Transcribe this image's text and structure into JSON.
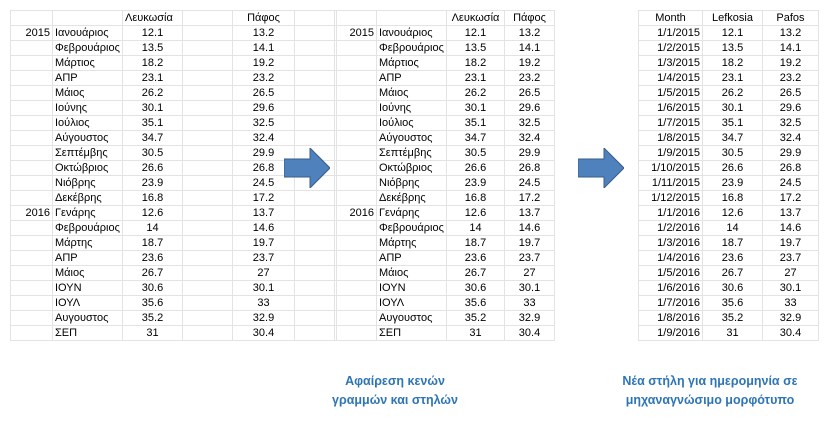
{
  "table1": {
    "headers": [
      "",
      "",
      "Λευκωσία",
      "",
      "Πάφος",
      ""
    ],
    "rows": [
      [
        "2015",
        "Ιανουάριος",
        "12.1",
        "",
        "13.2",
        ""
      ],
      [
        "",
        "Φεβρουάριος",
        "13.5",
        "",
        "14.1",
        ""
      ],
      [
        "",
        "Μάρτιος",
        "18.2",
        "",
        "19.2",
        ""
      ],
      [
        "",
        "ΑΠΡ",
        "23.1",
        "",
        "23.2",
        ""
      ],
      [
        "",
        "Μάιος",
        "26.2",
        "",
        "26.5",
        ""
      ],
      [
        "",
        "Ιούνης",
        "30.1",
        "",
        "29.6",
        ""
      ],
      [
        "",
        "Ιούλιος",
        "35.1",
        "",
        "32.5",
        ""
      ],
      [
        "",
        "Αύγουστος",
        "34.7",
        "",
        "32.4",
        ""
      ],
      [
        "",
        "Σεπτέμβης",
        "30.5",
        "",
        "29.9",
        ""
      ],
      [
        "",
        "Οκτώβριος",
        "26.6",
        "",
        "26.8",
        ""
      ],
      [
        "",
        "Νιόβρης",
        "23.9",
        "",
        "24.5",
        ""
      ],
      [
        "",
        "Δεκέβρης",
        "16.8",
        "",
        "17.2",
        ""
      ],
      [
        "2016",
        "Γενάρης",
        "12.6",
        "",
        "13.7",
        ""
      ],
      [
        "",
        "Φεβρουάριος",
        "14",
        "",
        "14.6",
        ""
      ],
      [
        "",
        "Μάρτης",
        "18.7",
        "",
        "19.7",
        ""
      ],
      [
        "",
        "ΑΠΡ",
        "23.6",
        "",
        "23.7",
        ""
      ],
      [
        "",
        "Μάιος",
        "26.7",
        "",
        "27",
        ""
      ],
      [
        "",
        "ΙΟΥΝ",
        "30.6",
        "",
        "30.1",
        ""
      ],
      [
        "",
        "ΙΟΥΛ",
        "35.6",
        "",
        "33",
        ""
      ],
      [
        "",
        "Αυγουστος",
        "35.2",
        "",
        "32.9",
        ""
      ],
      [
        "",
        "ΣΕΠ",
        "31",
        "",
        "30.4",
        ""
      ]
    ]
  },
  "table2": {
    "headers": [
      "",
      "",
      "Λευκωσία",
      "Πάφος"
    ],
    "rows": [
      [
        "2015",
        "Ιανουάριος",
        "12.1",
        "13.2"
      ],
      [
        "",
        "Φεβρουάριος",
        "13.5",
        "14.1"
      ],
      [
        "",
        "Μάρτιος",
        "18.2",
        "19.2"
      ],
      [
        "",
        "ΑΠΡ",
        "23.1",
        "23.2"
      ],
      [
        "",
        "Μάιος",
        "26.2",
        "26.5"
      ],
      [
        "",
        "Ιούνης",
        "30.1",
        "29.6"
      ],
      [
        "",
        "Ιούλιος",
        "35.1",
        "32.5"
      ],
      [
        "",
        "Αύγουστος",
        "34.7",
        "32.4"
      ],
      [
        "",
        "Σεπτέμβης",
        "30.5",
        "29.9"
      ],
      [
        "",
        "Οκτώβριος",
        "26.6",
        "26.8"
      ],
      [
        "",
        "Νιόβρης",
        "23.9",
        "24.5"
      ],
      [
        "",
        "Δεκέβρης",
        "16.8",
        "17.2"
      ],
      [
        "2016",
        "Γενάρης",
        "12.6",
        "13.7"
      ],
      [
        "",
        "Φεβρουάριος",
        "14",
        "14.6"
      ],
      [
        "",
        "Μάρτης",
        "18.7",
        "19.7"
      ],
      [
        "",
        "ΑΠΡ",
        "23.6",
        "23.7"
      ],
      [
        "",
        "Μάιος",
        "26.7",
        "27"
      ],
      [
        "",
        "ΙΟΥΝ",
        "30.6",
        "30.1"
      ],
      [
        "",
        "ΙΟΥΛ",
        "35.6",
        "33"
      ],
      [
        "",
        "Αυγουστος",
        "35.2",
        "32.9"
      ],
      [
        "",
        "ΣΕΠ",
        "31",
        "30.4"
      ]
    ]
  },
  "table3": {
    "headers": [
      "Month",
      "Lefkosia",
      "Pafos"
    ],
    "rows": [
      [
        "1/1/2015",
        "12.1",
        "13.2"
      ],
      [
        "1/2/2015",
        "13.5",
        "14.1"
      ],
      [
        "1/3/2015",
        "18.2",
        "19.2"
      ],
      [
        "1/4/2015",
        "23.1",
        "23.2"
      ],
      [
        "1/5/2015",
        "26.2",
        "26.5"
      ],
      [
        "1/6/2015",
        "30.1",
        "29.6"
      ],
      [
        "1/7/2015",
        "35.1",
        "32.5"
      ],
      [
        "1/8/2015",
        "34.7",
        "32.4"
      ],
      [
        "1/9/2015",
        "30.5",
        "29.9"
      ],
      [
        "1/10/2015",
        "26.6",
        "26.8"
      ],
      [
        "1/11/2015",
        "23.9",
        "24.5"
      ],
      [
        "1/12/2015",
        "16.8",
        "17.2"
      ],
      [
        "1/1/2016",
        "12.6",
        "13.7"
      ],
      [
        "1/2/2016",
        "14",
        "14.6"
      ],
      [
        "1/3/2016",
        "18.7",
        "19.7"
      ],
      [
        "1/4/2016",
        "23.6",
        "23.7"
      ],
      [
        "1/5/2016",
        "26.7",
        "27"
      ],
      [
        "1/6/2016",
        "30.6",
        "30.1"
      ],
      [
        "1/7/2016",
        "35.6",
        "33"
      ],
      [
        "1/8/2016",
        "35.2",
        "32.9"
      ],
      [
        "1/9/2016",
        "31",
        "30.4"
      ]
    ]
  },
  "arrows": {
    "icon": "right-arrow-icon",
    "color": "#4f81bd"
  },
  "captions": {
    "step1_line1": "Αφαίρεση κενών",
    "step1_line2": "γραμμών και στηλών",
    "step2_line1": "Νέα στήλη για ημερομηνία σε",
    "step2_line2": "μηχαναγνώσιμο μορφότυπο",
    "color": "#2e75b6"
  }
}
